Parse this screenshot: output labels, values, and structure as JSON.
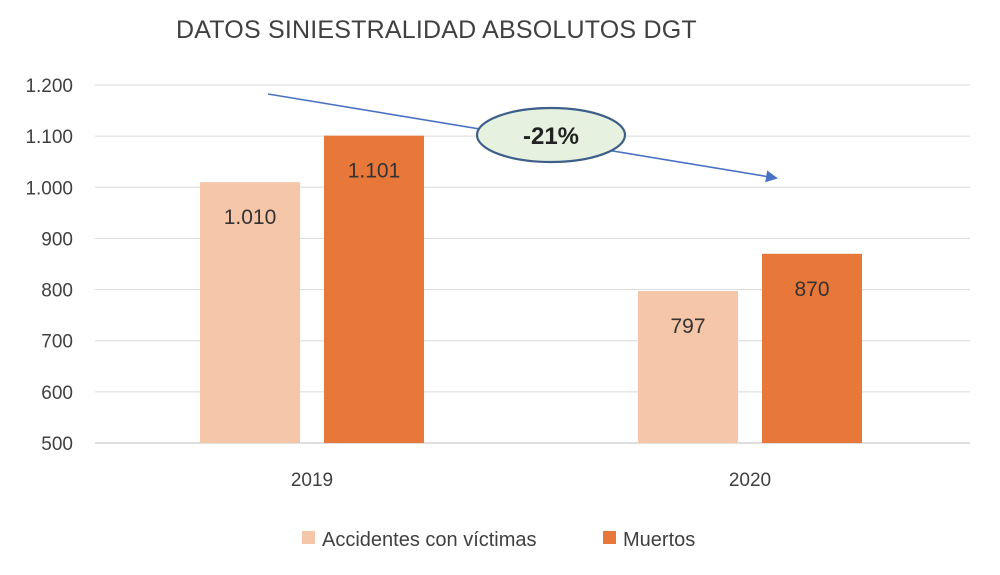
{
  "chart_data": {
    "type": "bar",
    "title": "DATOS SINIESTRALIDAD ABSOLUTOS DGT",
    "categories": [
      "2019",
      "2020"
    ],
    "series": [
      {
        "name": "Accidentes con víctimas",
        "values": [
          1010,
          797
        ],
        "labels": [
          "1.010",
          "797"
        ],
        "color": "#f5c6a8"
      },
      {
        "name": "Muertos",
        "values": [
          1101,
          870
        ],
        "labels": [
          "1.101",
          "870"
        ],
        "color": "#e8783a"
      }
    ],
    "ylim": [
      500,
      1200
    ],
    "yticks": [
      500,
      600,
      700,
      800,
      900,
      1000,
      1100,
      1200
    ],
    "ytick_labels": [
      "500",
      "600",
      "700",
      "800",
      "900",
      "1.000",
      "1.100",
      "1.200"
    ],
    "grid": true,
    "legend": "bottom",
    "annotation": {
      "text": "-21%",
      "fill": "#e6f2df",
      "stroke": "#3e5f8a",
      "arrow_color": "#4a72c4"
    }
  }
}
